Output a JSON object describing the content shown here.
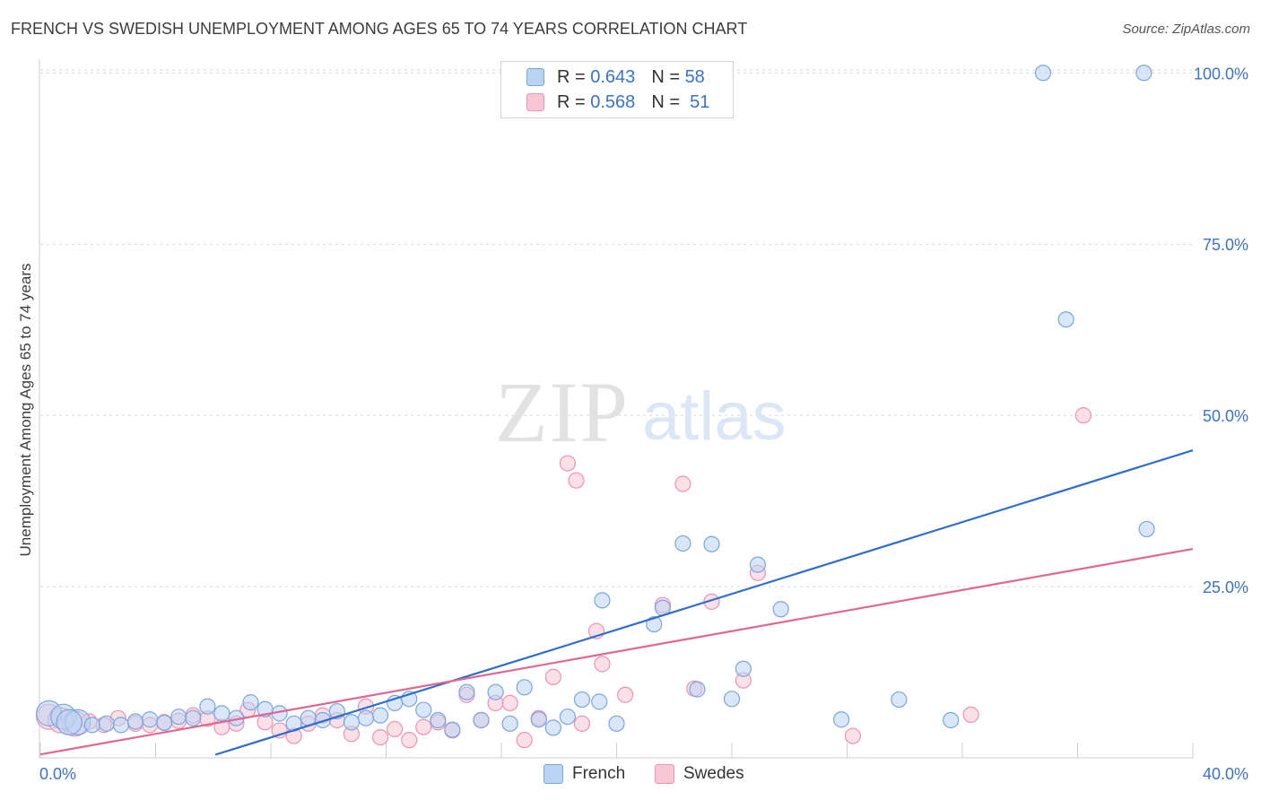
{
  "title": "FRENCH VS SWEDISH UNEMPLOYMENT AMONG AGES 65 TO 74 YEARS CORRELATION CHART",
  "source": "Source: ZipAtlas.com",
  "watermark": {
    "zip": "ZIP",
    "atlas": "atlas"
  },
  "legend": {
    "r_label": "R =",
    "n_label": "N =",
    "french": {
      "r": "0.643",
      "n": "58"
    },
    "swedes": {
      "r": "0.568",
      "n": "51"
    }
  },
  "colors": {
    "french_fill": "#b9d3f3",
    "french_stroke": "#7aa6e0",
    "french_line": "#2f6fcc",
    "swedes_fill": "#f9c6d6",
    "swedes_stroke": "#ee93b2",
    "swedes_line": "#e06693",
    "tick_label": "#3b72c8",
    "grid": "#d8d8d8"
  },
  "chart_data": {
    "type": "scatter",
    "title": "FRENCH VS SWEDISH UNEMPLOYMENT AMONG AGES 65 TO 74 YEARS CORRELATION CHART",
    "xlabel": "",
    "ylabel": "Unemployment Among Ages 65 to 74 years",
    "xlim": [
      0,
      40
    ],
    "ylim": [
      0,
      102
    ],
    "x_tick_labels": [
      "0.0%",
      "40.0%"
    ],
    "y_ticks": [
      25,
      50,
      75,
      100
    ],
    "y_tick_labels": [
      "25.0%",
      "50.0%",
      "75.0%",
      "100.0%"
    ],
    "grid": true,
    "legend_position": "top-center",
    "series": [
      {
        "name": "French",
        "r": 0.643,
        "n": 58,
        "trend": {
          "x": [
            0,
            40
          ],
          "y": [
            -7.5,
            44.9
          ]
        },
        "points": [
          [
            0.3,
            6.5
          ],
          [
            0.8,
            6.0
          ],
          [
            1.3,
            5.2
          ],
          [
            1.8,
            4.8
          ],
          [
            2.3,
            5.0
          ],
          [
            2.8,
            4.8
          ],
          [
            3.3,
            5.3
          ],
          [
            3.8,
            5.6
          ],
          [
            4.3,
            5.1
          ],
          [
            4.8,
            6.0
          ],
          [
            5.3,
            5.8
          ],
          [
            5.8,
            7.5
          ],
          [
            6.3,
            6.5
          ],
          [
            6.8,
            5.8
          ],
          [
            7.3,
            8.1
          ],
          [
            7.8,
            7.1
          ],
          [
            8.3,
            6.5
          ],
          [
            8.8,
            5.0
          ],
          [
            9.3,
            5.8
          ],
          [
            9.8,
            5.5
          ],
          [
            10.3,
            6.8
          ],
          [
            10.8,
            5.2
          ],
          [
            11.3,
            5.8
          ],
          [
            11.8,
            6.2
          ],
          [
            12.3,
            8.0
          ],
          [
            12.8,
            8.6
          ],
          [
            13.3,
            7.0
          ],
          [
            13.8,
            5.5
          ],
          [
            14.3,
            4.1
          ],
          [
            14.8,
            9.6
          ],
          [
            15.3,
            5.5
          ],
          [
            15.8,
            9.6
          ],
          [
            16.3,
            5.0
          ],
          [
            16.8,
            10.3
          ],
          [
            17.3,
            5.6
          ],
          [
            17.8,
            4.4
          ],
          [
            18.3,
            6.0
          ],
          [
            18.8,
            8.5
          ],
          [
            19.4,
            8.2
          ],
          [
            19.5,
            23.0
          ],
          [
            20.0,
            5.0
          ],
          [
            21.3,
            19.5
          ],
          [
            21.6,
            21.9
          ],
          [
            22.3,
            31.3
          ],
          [
            22.8,
            10.0
          ],
          [
            23.3,
            31.2
          ],
          [
            24.0,
            8.6
          ],
          [
            24.4,
            13.0
          ],
          [
            24.9,
            28.2
          ],
          [
            25.7,
            21.7
          ],
          [
            27.8,
            5.6
          ],
          [
            29.8,
            8.5
          ],
          [
            31.6,
            5.5
          ],
          [
            34.8,
            100.0
          ],
          [
            35.6,
            64.0
          ],
          [
            38.3,
            100.0
          ],
          [
            38.4,
            33.4
          ],
          [
            1.0,
            5.2
          ]
        ]
      },
      {
        "name": "Swedes",
        "r": 0.568,
        "n": 51,
        "trend": {
          "x": [
            0,
            40
          ],
          "y": [
            0.5,
            30.5
          ]
        },
        "points": [
          [
            0.3,
            6.0
          ],
          [
            0.7,
            5.5
          ],
          [
            1.2,
            5.0
          ],
          [
            1.7,
            5.3
          ],
          [
            2.2,
            4.8
          ],
          [
            2.7,
            5.8
          ],
          [
            3.3,
            5.0
          ],
          [
            3.8,
            4.8
          ],
          [
            4.3,
            5.2
          ],
          [
            4.8,
            5.4
          ],
          [
            5.3,
            6.2
          ],
          [
            5.8,
            5.7
          ],
          [
            6.3,
            4.5
          ],
          [
            6.8,
            5.0
          ],
          [
            7.2,
            7.0
          ],
          [
            7.8,
            5.2
          ],
          [
            8.3,
            4.0
          ],
          [
            8.8,
            3.2
          ],
          [
            9.3,
            5.0
          ],
          [
            9.8,
            6.2
          ],
          [
            10.3,
            5.5
          ],
          [
            10.8,
            3.5
          ],
          [
            11.3,
            7.5
          ],
          [
            11.8,
            3.0
          ],
          [
            12.3,
            4.2
          ],
          [
            12.8,
            2.6
          ],
          [
            13.3,
            4.5
          ],
          [
            13.8,
            5.2
          ],
          [
            14.3,
            4.0
          ],
          [
            14.8,
            9.2
          ],
          [
            15.3,
            5.5
          ],
          [
            15.8,
            8.0
          ],
          [
            16.3,
            8.0
          ],
          [
            16.8,
            2.6
          ],
          [
            17.3,
            5.8
          ],
          [
            17.8,
            11.8
          ],
          [
            18.3,
            43.0
          ],
          [
            18.6,
            40.5
          ],
          [
            18.8,
            5.0
          ],
          [
            19.3,
            18.5
          ],
          [
            19.5,
            13.7
          ],
          [
            20.3,
            9.2
          ],
          [
            21.6,
            22.3
          ],
          [
            22.3,
            40.0
          ],
          [
            22.7,
            10.1
          ],
          [
            23.3,
            22.8
          ],
          [
            24.4,
            11.3
          ],
          [
            24.9,
            27.0
          ],
          [
            28.2,
            3.2
          ],
          [
            32.3,
            6.3
          ],
          [
            36.2,
            50.0
          ]
        ]
      }
    ]
  }
}
